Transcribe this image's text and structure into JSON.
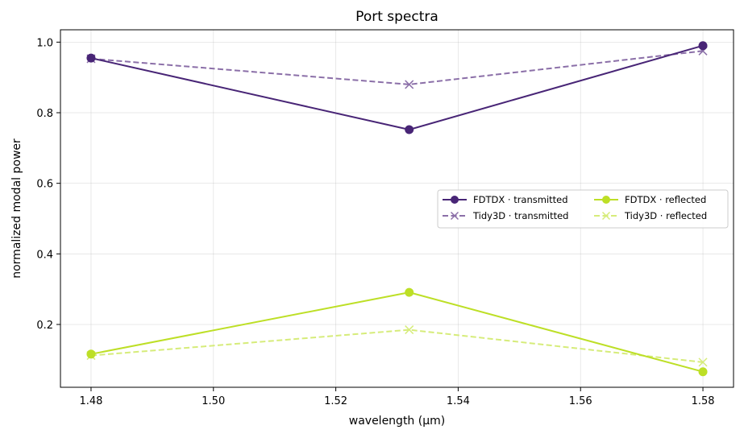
{
  "chart_data": {
    "type": "line",
    "title": "Port spectra",
    "xlabel": "wavelength (μm)",
    "ylabel": "normalized modal power",
    "x": [
      1.48,
      1.532,
      1.58
    ],
    "xlim": [
      1.475,
      1.585
    ],
    "ylim": [
      0.022,
      1.035
    ],
    "xticks": [
      1.48,
      1.5,
      1.52,
      1.54,
      1.56,
      1.58
    ],
    "xtick_labels": [
      "1.48",
      "1.50",
      "1.52",
      "1.54",
      "1.56",
      "1.58"
    ],
    "yticks": [
      0.2,
      0.4,
      0.6,
      0.8,
      1.0
    ],
    "ytick_labels": [
      "0.2",
      "0.4",
      "0.6",
      "0.8",
      "1.0"
    ],
    "grid": true,
    "legend_position": "center-right",
    "series": [
      {
        "name": "FDTDX · transmitted",
        "values": [
          0.955,
          0.752,
          0.99
        ],
        "color": "#482576",
        "marker": "circle",
        "linestyle": "solid"
      },
      {
        "name": "Tidy3D · transmitted",
        "values": [
          0.953,
          0.88,
          0.975
        ],
        "color": "#8b6fa8",
        "marker": "x",
        "linestyle": "dashed"
      },
      {
        "name": "FDTDX · reflected",
        "values": [
          0.116,
          0.291,
          0.066
        ],
        "color": "#bddf26",
        "marker": "circle",
        "linestyle": "solid"
      },
      {
        "name": "Tidy3D · reflected",
        "values": [
          0.112,
          0.185,
          0.093
        ],
        "color": "#d6ec7a",
        "marker": "x",
        "linestyle": "dashed"
      }
    ]
  }
}
